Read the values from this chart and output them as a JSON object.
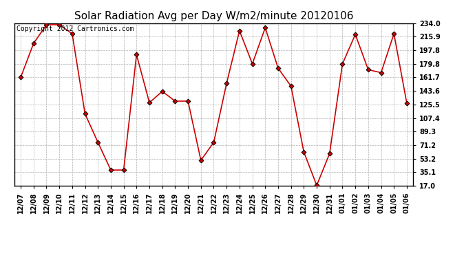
{
  "title": "Solar Radiation Avg per Day W/m2/minute 20120106",
  "copyright_text": "Copyright 2012 Cartronics.com",
  "dates": [
    "12/07",
    "12/08",
    "12/09",
    "12/10",
    "12/11",
    "12/12",
    "12/13",
    "12/14",
    "12/15",
    "12/16",
    "12/17",
    "12/18",
    "12/19",
    "12/20",
    "12/21",
    "12/22",
    "12/23",
    "12/24",
    "12/25",
    "12/26",
    "12/27",
    "12/28",
    "12/29",
    "12/30",
    "12/31",
    "01/01",
    "01/02",
    "01/03",
    "01/04",
    "01/05",
    "01/06"
  ],
  "values": [
    161.7,
    207.0,
    232.0,
    232.0,
    220.0,
    113.0,
    75.0,
    38.0,
    38.0,
    192.0,
    128.0,
    143.0,
    130.0,
    130.0,
    51.0,
    75.0,
    154.0,
    224.0,
    179.8,
    228.0,
    174.0,
    150.0,
    62.0,
    17.5,
    60.0,
    179.8,
    219.0,
    172.0,
    168.0,
    220.0,
    127.0
  ],
  "line_color": "#cc0000",
  "marker_color": "#000000",
  "background_color": "#ffffff",
  "plot_bg_color": "#ffffff",
  "grid_color": "#b0b0b0",
  "yticks": [
    17.0,
    35.1,
    53.2,
    71.2,
    89.3,
    107.4,
    125.5,
    143.6,
    161.7,
    179.8,
    197.8,
    215.9,
    234.0
  ],
  "ylim_min": 17.0,
  "ylim_max": 234.0,
  "title_fontsize": 11,
  "tick_fontsize": 7,
  "copyright_fontsize": 7
}
